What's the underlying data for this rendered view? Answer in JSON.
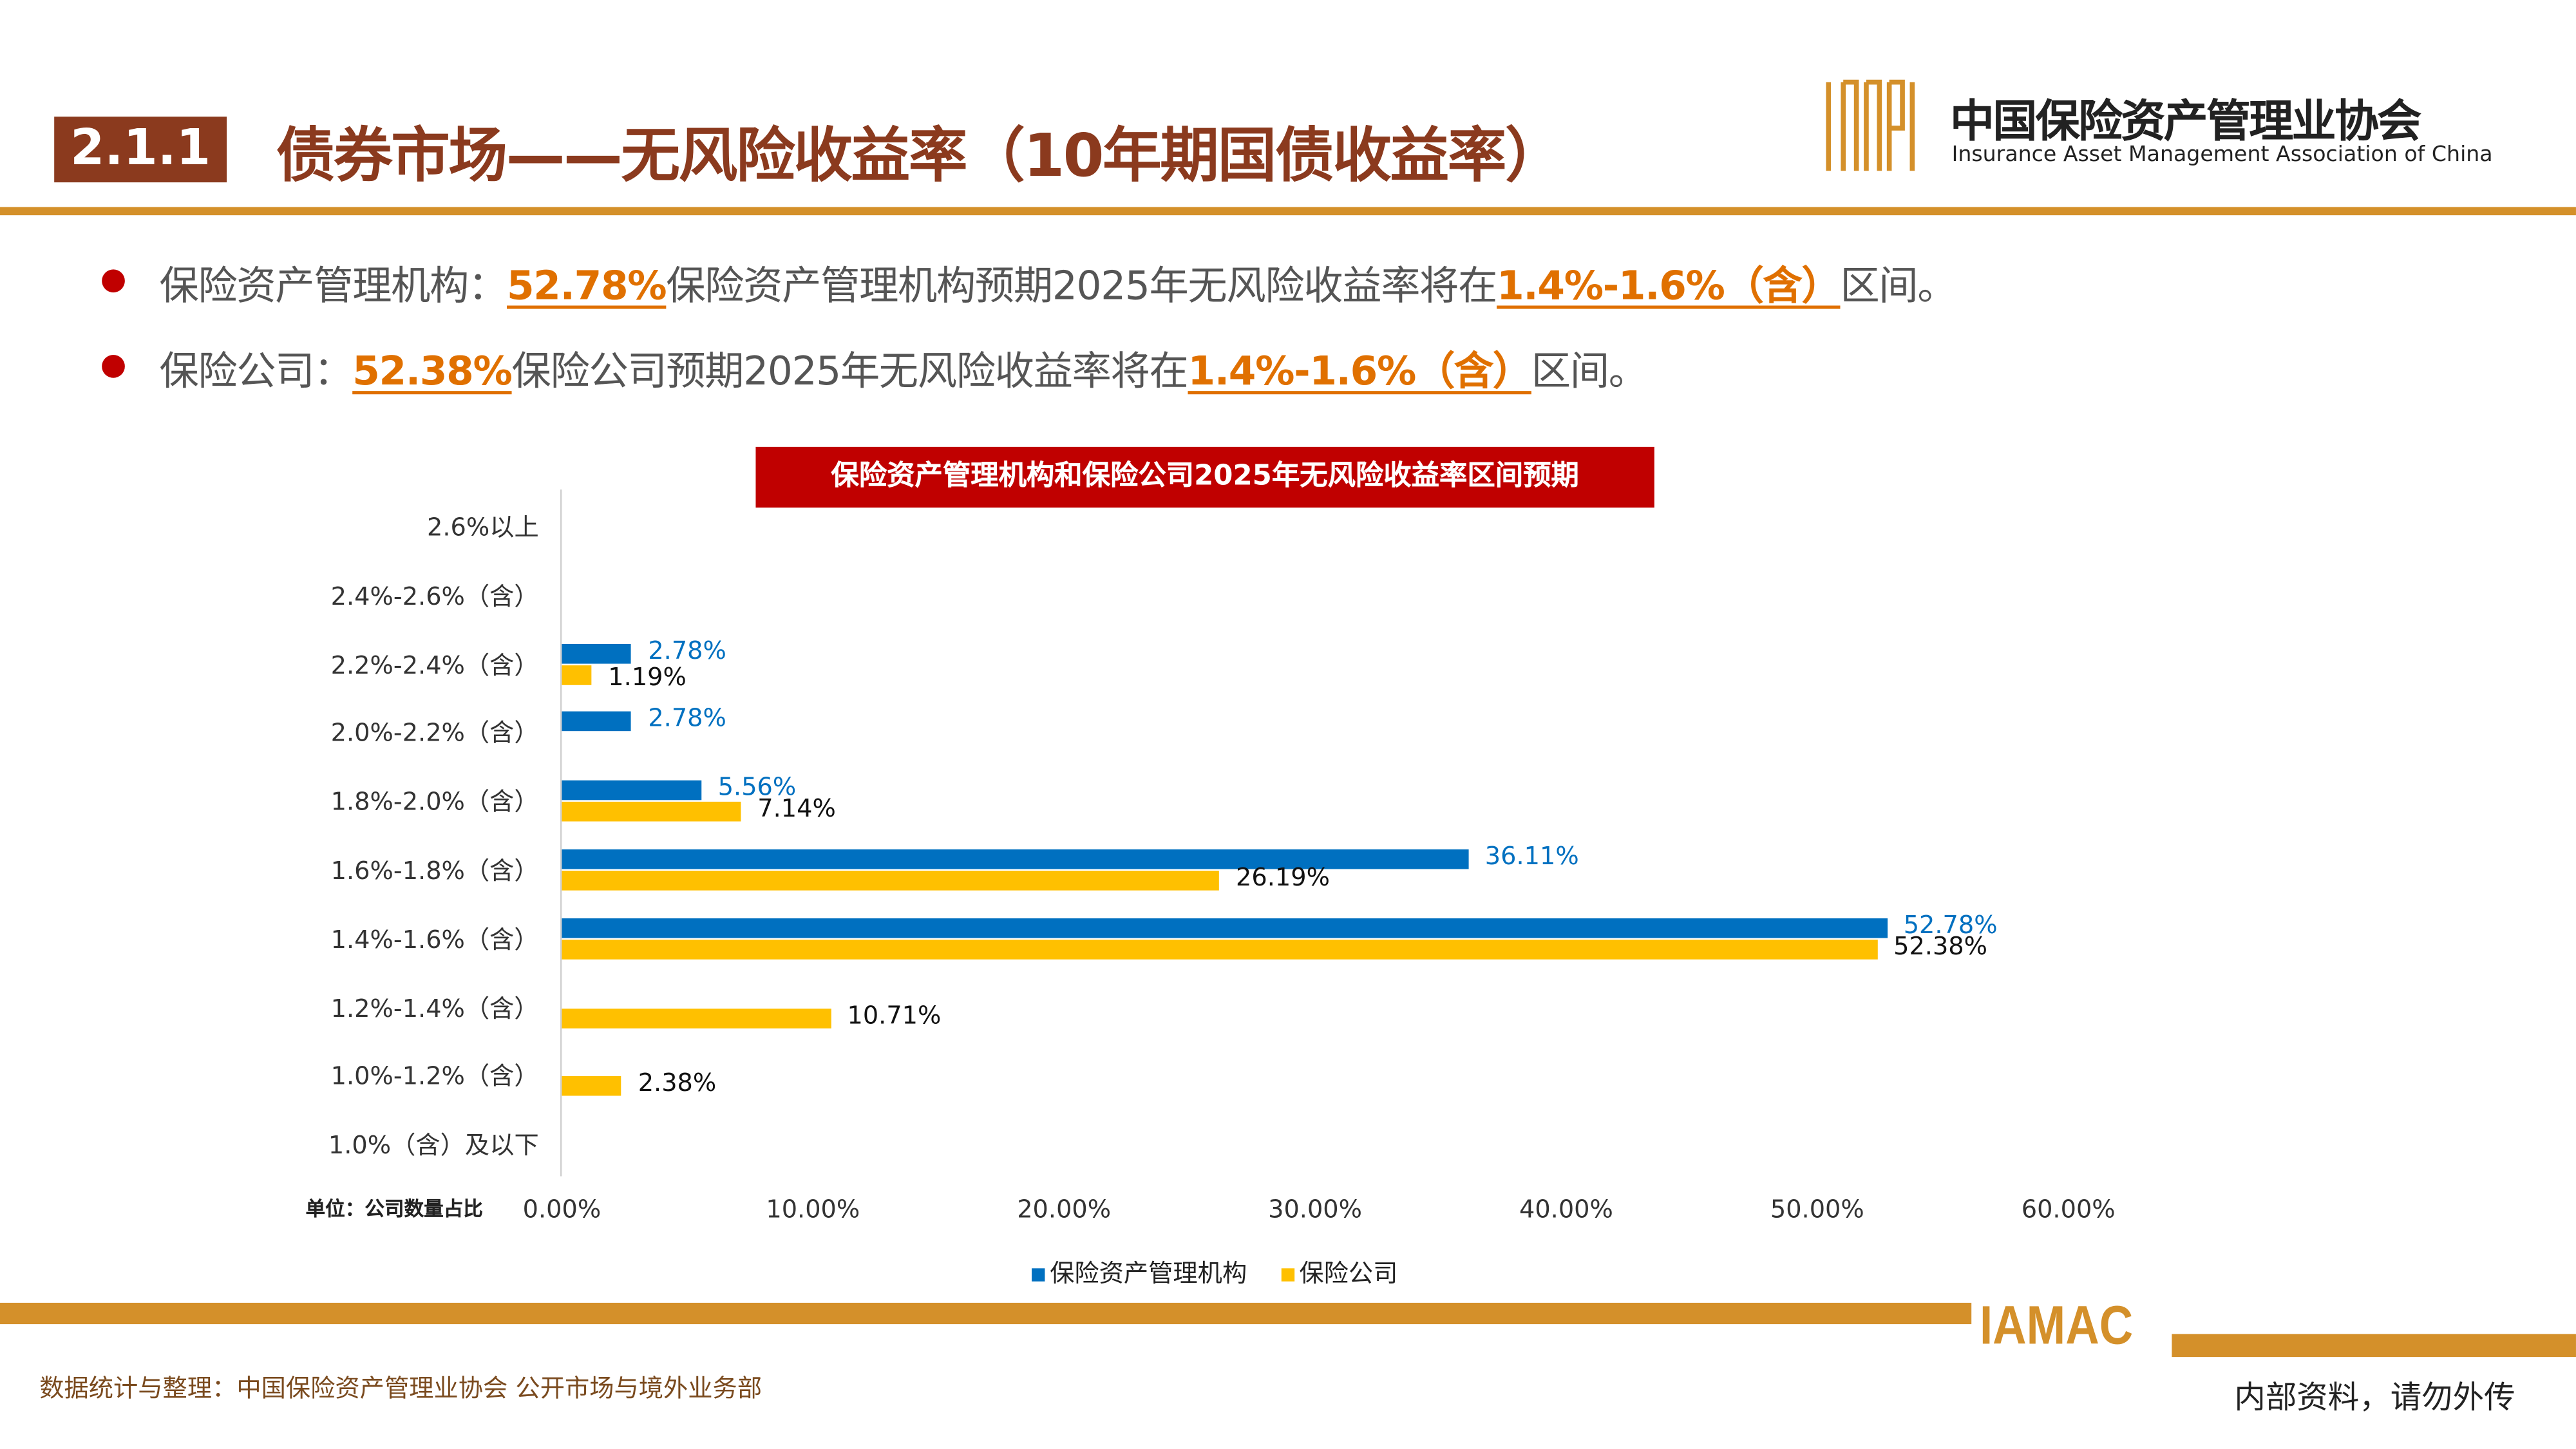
{
  "header": {
    "section": "2.1.1",
    "title": "债券市场——无风险收益率（10年期国债收益率）",
    "org_cn": "中国保险资产管理业协会",
    "org_en": "Insurance Asset Management Association of China",
    "org_abbr": "IAMAC"
  },
  "bullets": [
    {
      "pre": "保险资产管理机构：",
      "pct": "52.78%",
      "mid": "保险资产管理机构预期2025年无风险收益率将在",
      "range": "1.4%-1.6%（含）",
      "post": "区间。"
    },
    {
      "pre": "保险公司：",
      "pct": "52.38%",
      "mid": "保险公司预期2025年无风险收益率将在",
      "range": "1.4%-1.6%（含）",
      "post": "区间。"
    }
  ],
  "colors": {
    "brand_brown": "#8B3A1E",
    "gold": "#D4902A",
    "red": "#C00000",
    "highlight": "#E07000",
    "series_blue": "#0070C0",
    "series_yellow": "#FFC000"
  },
  "chart_data": {
    "type": "bar",
    "orientation": "horizontal",
    "title": "保险资产管理机构和保险公司2025年无风险收益率区间预期",
    "unit_label": "单位：公司数量占比",
    "categories": [
      "2.6%以上",
      "2.4%-2.6%（含）",
      "2.2%-2.4%（含）",
      "2.0%-2.2%（含）",
      "1.8%-2.0%（含）",
      "1.6%-1.8%（含）",
      "1.4%-1.6%（含）",
      "1.2%-1.4%（含）",
      "1.0%-1.2%（含）",
      "1.0%（含）及以下"
    ],
    "series": [
      {
        "name": "保险资产管理机构",
        "color": "#0070C0",
        "values": [
          null,
          null,
          2.78,
          2.78,
          5.56,
          36.11,
          52.78,
          null,
          null,
          null
        ],
        "labels": [
          null,
          null,
          "2.78%",
          "2.78%",
          "5.56%",
          "36.11%",
          "52.78%",
          null,
          null,
          null
        ]
      },
      {
        "name": "保险公司",
        "color": "#FFC000",
        "values": [
          null,
          null,
          1.19,
          null,
          7.14,
          26.19,
          52.38,
          10.71,
          2.38,
          null
        ],
        "labels": [
          null,
          null,
          "1.19%",
          null,
          "7.14%",
          "26.19%",
          "52.38%",
          "10.71%",
          "2.38%",
          null
        ]
      }
    ],
    "xlim": [
      0,
      60
    ],
    "xticks": [
      "0.00%",
      "10.00%",
      "20.00%",
      "30.00%",
      "40.00%",
      "50.00%",
      "60.00%"
    ],
    "grid": false,
    "legend": "bottom"
  },
  "footer": {
    "source": "数据统计与整理：中国保险资产管理业协会 公开市场与境外业务部",
    "notice": "内部资料，请勿外传"
  }
}
